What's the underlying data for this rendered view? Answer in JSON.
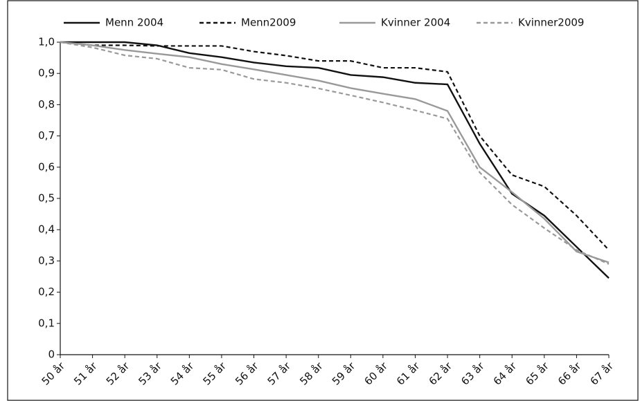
{
  "chart_data": {
    "type": "line",
    "categories": [
      "50 år",
      "51 år",
      "52 år",
      "53 år",
      "54 år",
      "55 år",
      "56 år",
      "57 år",
      "58 år",
      "59 år",
      "60 år",
      "61 år",
      "62 år",
      "63 år",
      "64 år",
      "65 år",
      "66 år",
      "67 år"
    ],
    "series": [
      {
        "name": "Menn 2004",
        "color": "#111111",
        "dash": false,
        "values": [
          1.0,
          1.0,
          1.0,
          0.99,
          0.965,
          0.952,
          0.935,
          0.923,
          0.918,
          0.895,
          0.888,
          0.87,
          0.865,
          0.675,
          0.515,
          0.445,
          0.345,
          0.245
        ]
      },
      {
        "name": "Menn2009",
        "color": "#111111",
        "dash": true,
        "values": [
          1.0,
          0.99,
          0.99,
          0.988,
          0.988,
          0.988,
          0.97,
          0.957,
          0.94,
          0.94,
          0.918,
          0.918,
          0.905,
          0.7,
          0.575,
          0.538,
          0.445,
          0.335
        ]
      },
      {
        "name": "Kvinner 2004",
        "color": "#999999",
        "dash": false,
        "values": [
          1.0,
          0.99,
          0.975,
          0.963,
          0.952,
          0.93,
          0.913,
          0.895,
          0.877,
          0.853,
          0.835,
          0.818,
          0.78,
          0.6,
          0.52,
          0.435,
          0.33,
          0.295
        ]
      },
      {
        "name": "Kvinner2009",
        "color": "#999999",
        "dash": true,
        "values": [
          1.0,
          0.983,
          0.958,
          0.947,
          0.918,
          0.912,
          0.882,
          0.87,
          0.852,
          0.83,
          0.807,
          0.782,
          0.755,
          0.583,
          0.48,
          0.405,
          0.335,
          0.29
        ]
      }
    ],
    "ylim": [
      0,
      1.0
    ],
    "yticks": [
      0,
      {
        "value": 0.1,
        "label": "0,1"
      },
      {
        "value": 0.2,
        "label": "0,2"
      },
      {
        "value": 0.3,
        "label": "0,3"
      },
      {
        "value": 0.4,
        "label": "0,4"
      },
      {
        "value": 0.5,
        "label": "0,5"
      },
      {
        "value": 0.6,
        "label": "0,6"
      },
      {
        "value": 0.7,
        "label": "0,7"
      },
      {
        "value": 0.8,
        "label": "0,8"
      },
      {
        "value": 0.9,
        "label": "0,9"
      },
      {
        "value": 1.0,
        "label": "1,0"
      }
    ],
    "legend": "top"
  }
}
